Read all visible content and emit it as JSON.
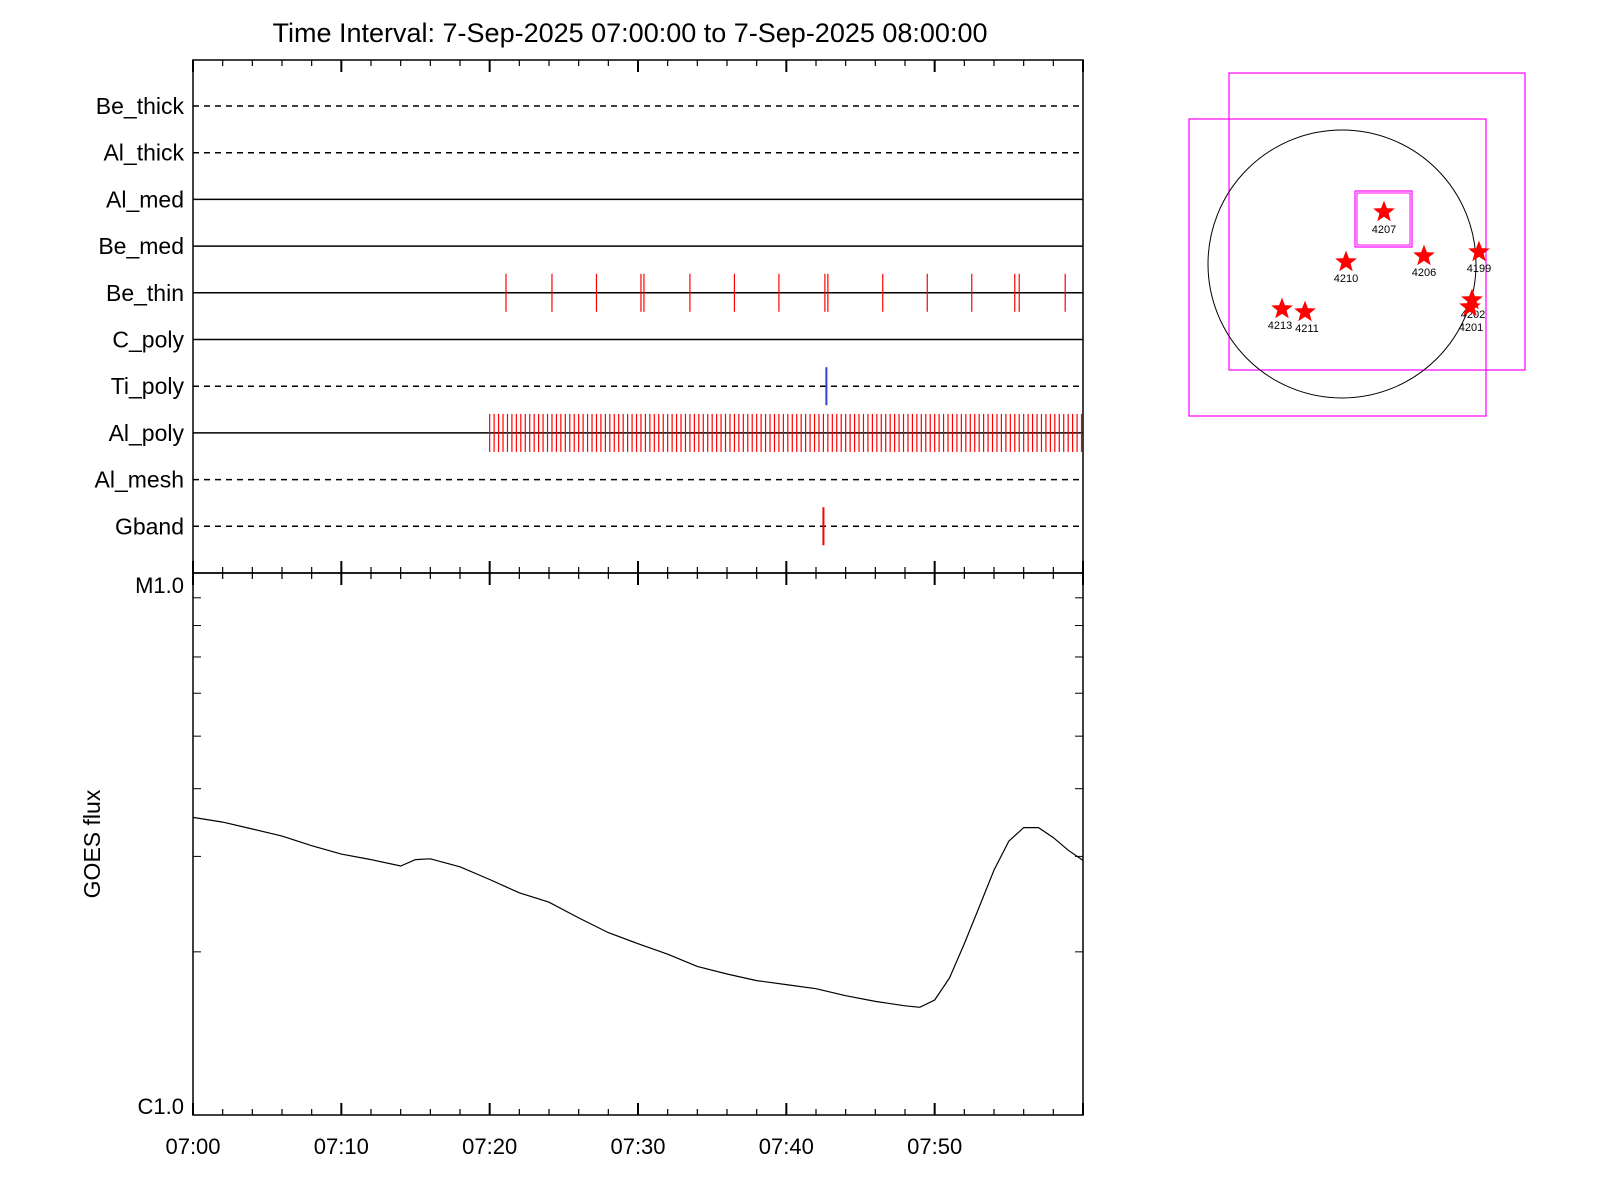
{
  "chart_data": [
    {
      "type": "event-timeline",
      "title": "Time Interval:  7-Sep-2025 07:00:00 to  7-Sep-2025 08:00:00",
      "x_range_minutes": [
        0,
        60
      ],
      "channels": [
        {
          "name": "Be_thick",
          "style": "dashed"
        },
        {
          "name": "Al_thick",
          "style": "dashed"
        },
        {
          "name": "Al_med",
          "style": "solid"
        },
        {
          "name": "Be_med",
          "style": "solid"
        },
        {
          "name": "Be_thin",
          "style": "solid",
          "events_color": "#ff0000",
          "events": [
            21.1,
            24.2,
            27.2,
            30.2,
            30.4,
            33.5,
            36.5,
            39.5,
            42.6,
            42.8,
            46.5,
            49.5,
            52.5,
            55.4,
            55.7,
            58.8
          ]
        },
        {
          "name": "C_poly",
          "style": "solid"
        },
        {
          "name": "Ti_poly",
          "style": "dashed",
          "events_color": "#3344cc",
          "events": [
            42.7
          ]
        },
        {
          "name": "Al_poly",
          "style": "solid",
          "events_color": "#ff0000",
          "events_dense": {
            "start": 20.0,
            "end": 60.0,
            "step": 0.3
          }
        },
        {
          "name": "Al_mesh",
          "style": "dashed"
        },
        {
          "name": "Gband",
          "style": "dashed",
          "events_color": "#ff0000",
          "events": [
            42.5
          ]
        }
      ]
    },
    {
      "type": "line",
      "ylabel": "GOES flux",
      "y_scale": "log",
      "y_ticklabels": [
        "C1.0",
        "M1.0"
      ],
      "ylim": [
        1e-06,
        1e-05
      ],
      "x_ticklabels": [
        "07:00",
        "07:10",
        "07:20",
        "07:30",
        "07:40",
        "07:50"
      ],
      "x_tick_minutes": [
        0,
        10,
        20,
        30,
        40,
        50
      ],
      "x_range_minutes": [
        0,
        60
      ],
      "series": [
        {
          "color": "#000000",
          "points": [
            [
              0,
              3.54e-06
            ],
            [
              2,
              3.47e-06
            ],
            [
              4,
              3.37e-06
            ],
            [
              6,
              3.27e-06
            ],
            [
              8,
              3.14e-06
            ],
            [
              10,
              3.03e-06
            ],
            [
              12,
              2.96e-06
            ],
            [
              14,
              2.88e-06
            ],
            [
              15,
              2.96e-06
            ],
            [
              16,
              2.97e-06
            ],
            [
              18,
              2.87e-06
            ],
            [
              20,
              2.72e-06
            ],
            [
              22,
              2.57e-06
            ],
            [
              24,
              2.47e-06
            ],
            [
              26,
              2.31e-06
            ],
            [
              28,
              2.17e-06
            ],
            [
              30,
              2.07e-06
            ],
            [
              32,
              1.98e-06
            ],
            [
              34,
              1.88e-06
            ],
            [
              36,
              1.82e-06
            ],
            [
              38,
              1.77e-06
            ],
            [
              40,
              1.74e-06
            ],
            [
              42,
              1.71e-06
            ],
            [
              44,
              1.66e-06
            ],
            [
              46,
              1.62e-06
            ],
            [
              48,
              1.59e-06
            ],
            [
              49,
              1.58e-06
            ],
            [
              50,
              1.63e-06
            ],
            [
              51,
              1.79e-06
            ],
            [
              52,
              2.07e-06
            ],
            [
              53,
              2.42e-06
            ],
            [
              54,
              2.83e-06
            ],
            [
              55,
              3.2e-06
            ],
            [
              56,
              3.39e-06
            ],
            [
              57,
              3.39e-06
            ],
            [
              58,
              3.25e-06
            ],
            [
              59,
              3.08e-06
            ],
            [
              60,
              2.95e-06
            ]
          ]
        }
      ]
    },
    {
      "type": "solar-map",
      "frame_color": "#ff00ff",
      "marker_color": "#ff0000",
      "regions": [
        {
          "label": "4207"
        },
        {
          "label": "4210"
        },
        {
          "label": "4206"
        },
        {
          "label": "4199"
        },
        {
          "label": "4213"
        },
        {
          "label": "4211"
        },
        {
          "label": "4202"
        },
        {
          "label": "4201"
        }
      ]
    }
  ]
}
